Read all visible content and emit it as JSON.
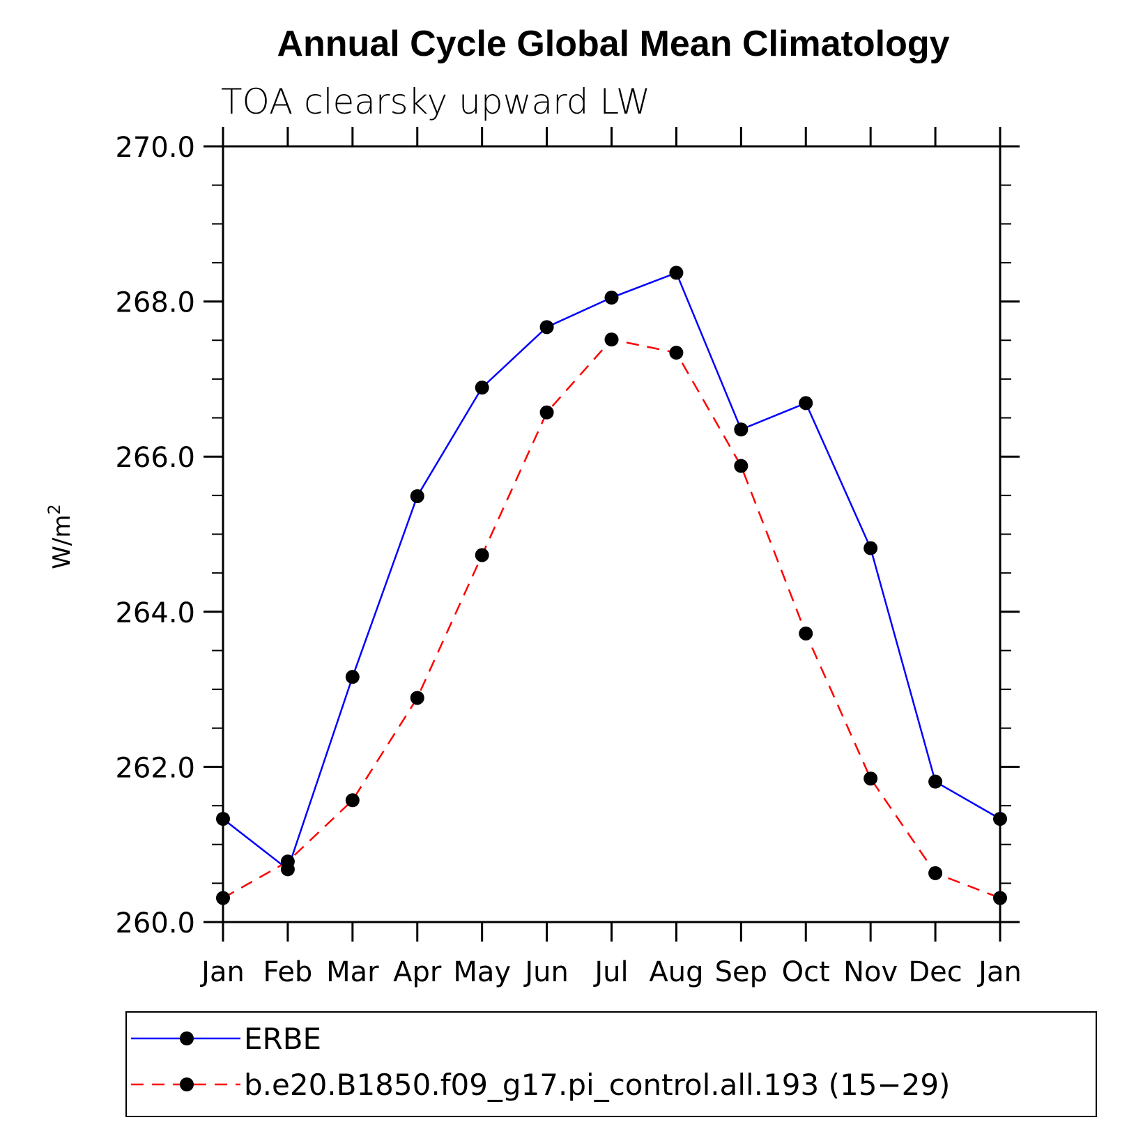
{
  "chart_data": {
    "type": "line",
    "title": "Annual Cycle Global Mean Climatology",
    "subtitle": "TOA clearsky upward LW",
    "xlabel": "",
    "ylabel": "W/m",
    "ylabel_superscript": "2",
    "categories": [
      "Jan",
      "Feb",
      "Mar",
      "Apr",
      "May",
      "Jun",
      "Jul",
      "Aug",
      "Sep",
      "Oct",
      "Nov",
      "Dec",
      "Jan"
    ],
    "ylim": [
      260.0,
      270.0
    ],
    "yticks": [
      260.0,
      262.0,
      264.0,
      266.0,
      268.0,
      270.0
    ],
    "ytick_labels": [
      "260.0",
      "262.0",
      "264.0",
      "266.0",
      "268.0",
      "270.0"
    ],
    "series": [
      {
        "name": "ERBE",
        "color": "#0000ff",
        "dash": "solid",
        "values": [
          261.33,
          260.68,
          263.16,
          265.49,
          266.89,
          267.67,
          268.05,
          268.37,
          266.35,
          266.69,
          264.82,
          261.81,
          261.33
        ]
      },
      {
        "name": "b.e20.B1850.f09_g17.pi_control.all.193 (15−29)",
        "color": "#ff0000",
        "dash": "dashed",
        "values": [
          260.31,
          260.78,
          261.57,
          262.89,
          264.73,
          266.57,
          267.51,
          267.34,
          265.88,
          263.72,
          261.85,
          260.63,
          260.31
        ]
      }
    ],
    "legend_position": "bottom"
  }
}
